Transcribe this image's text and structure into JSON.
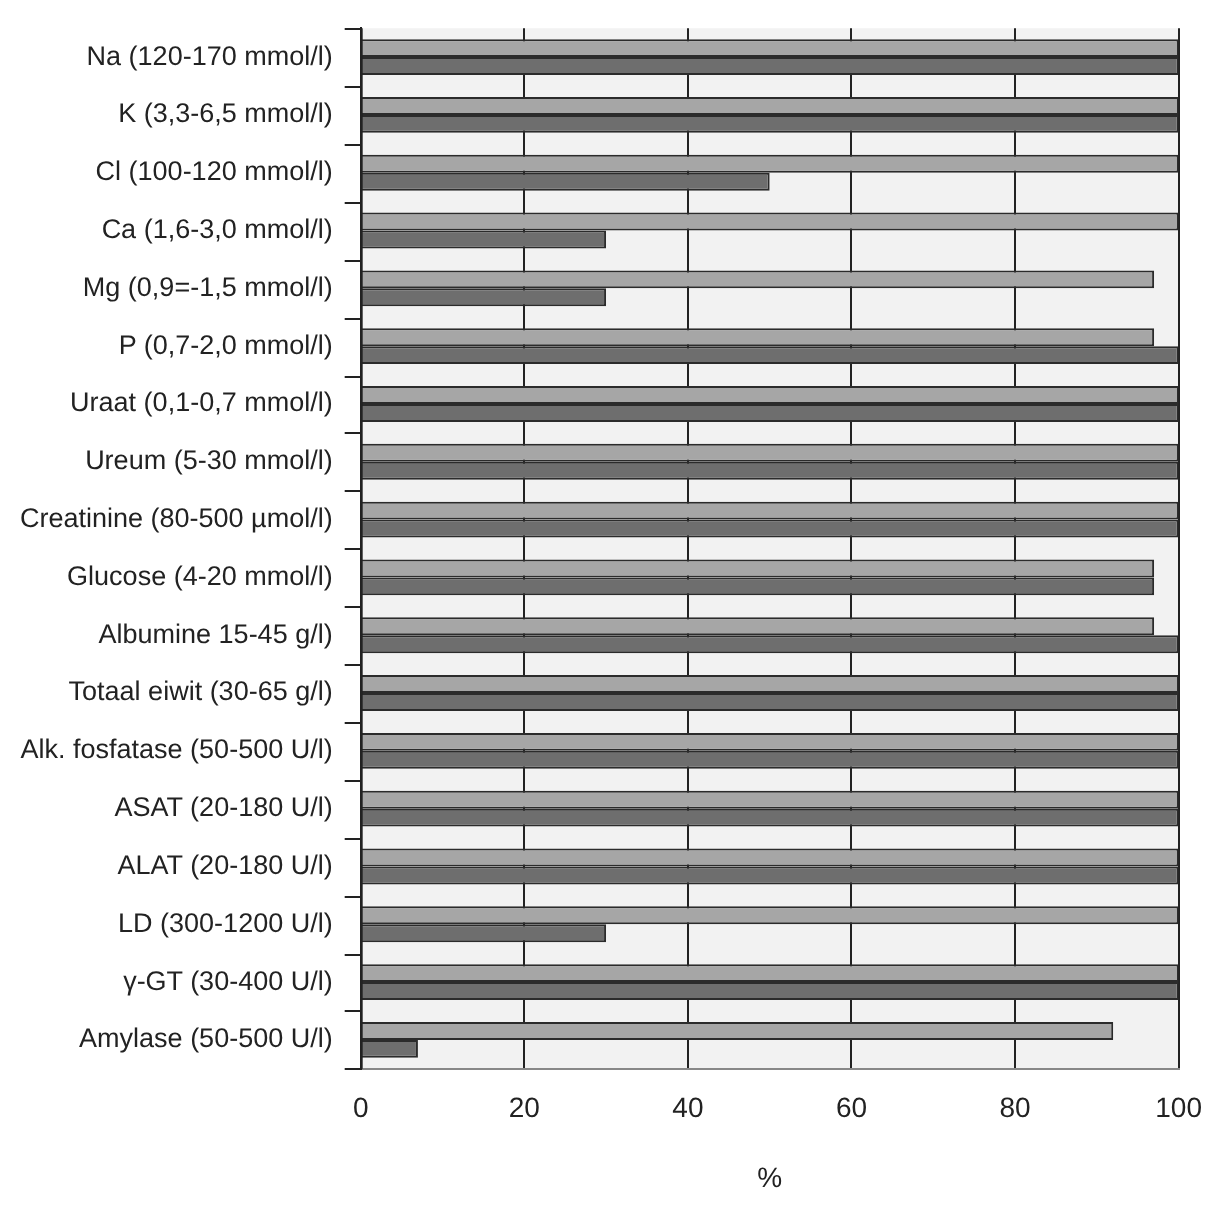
{
  "chart_data": {
    "type": "bar",
    "orientation": "horizontal",
    "xlabel": "%",
    "categories": [
      "Na (120-170 mmol/l)",
      "K (3,3-6,5 mmol/l)",
      "Cl (100-120 mmol/l)",
      "Ca (1,6-3,0 mmol/l)",
      "Mg (0,9=-1,5 mmol/l)",
      "P (0,7-2,0 mmol/l)",
      "Uraat (0,1-0,7 mmol/l)",
      "Ureum (5-30 mmol/l)",
      "Creatinine (80-500 µmol/l)",
      "Glucose (4-20 mmol/l)",
      "Albumine 15-45 g/l)",
      "Totaal eiwit (30-65 g/l)",
      "Alk. fosfatase (50-500 U/l)",
      "ASAT (20-180 U/l)",
      "ALAT (20-180 U/l)",
      "LD (300-1200 U/l)",
      "γ-GT (30-400 U/l)",
      "Amylase (50-500 U/l)"
    ],
    "series": [
      {
        "color": "#a6a6a6",
        "values": [
          100,
          100,
          100,
          100,
          97,
          97,
          100,
          100,
          100,
          97,
          97,
          100,
          100,
          100,
          100,
          100,
          100,
          92
        ]
      },
      {
        "color": "#6e6e6e",
        "values": [
          100,
          100,
          50,
          30,
          30,
          100,
          100,
          100,
          100,
          97,
          100,
          100,
          100,
          100,
          100,
          30,
          100,
          7
        ]
      }
    ],
    "xlim": [
      0,
      100
    ],
    "xticks": [
      0,
      20,
      40,
      60,
      80,
      100
    ],
    "grid": "x",
    "legend": false
  }
}
